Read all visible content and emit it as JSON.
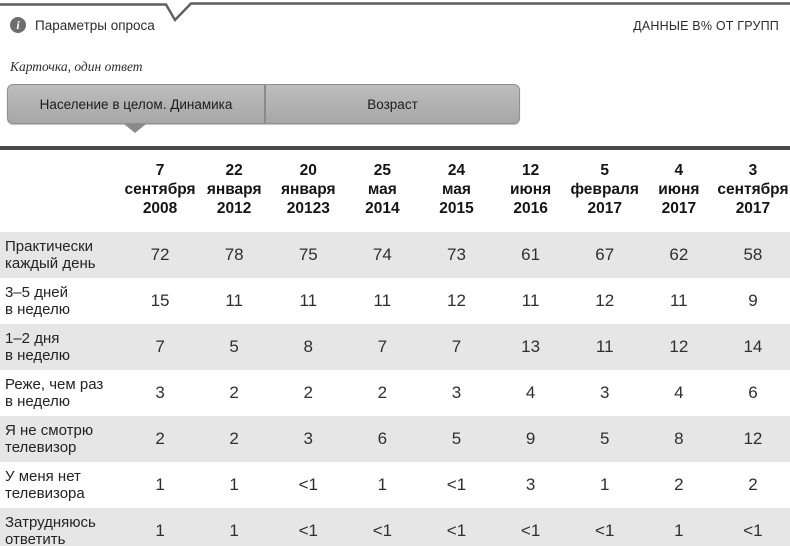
{
  "survey": {
    "params_label": "Параметры опроса",
    "data_note": "ДАННЫЕ В% ОТ ГРУПП",
    "question_note": "Карточка, один ответ"
  },
  "tabs": [
    {
      "label": "Население в целом. Динамика",
      "active": true
    },
    {
      "label": "Возраст",
      "active": false
    }
  ],
  "icons": {
    "info": "i"
  },
  "table": {
    "columns": [
      "7\nсентября\n2008",
      "22\nянваря\n2012",
      "20\nянваря\n20123",
      "25\nмая\n2014",
      "24\nмая\n2015",
      "12\nиюня\n2016",
      "5\nфевраля\n2017",
      "4\nиюня\n2017",
      "3\nсентября\n2017"
    ],
    "rows": [
      {
        "label": "Практически\nкаждый день",
        "values": [
          "72",
          "78",
          "75",
          "74",
          "73",
          "61",
          "67",
          "62",
          "58"
        ]
      },
      {
        "label": "3–5 дней\nв неделю",
        "values": [
          "15",
          "11",
          "11",
          "11",
          "12",
          "11",
          "12",
          "11",
          "9"
        ]
      },
      {
        "label": "1–2 дня\nв неделю",
        "values": [
          "7",
          "5",
          "8",
          "7",
          "7",
          "13",
          "11",
          "12",
          "14"
        ]
      },
      {
        "label": "Реже, чем раз\nв неделю",
        "values": [
          "3",
          "2",
          "2",
          "2",
          "3",
          "4",
          "3",
          "4",
          "6"
        ]
      },
      {
        "label": "Я не смотрю\nтелевизор",
        "values": [
          "2",
          "2",
          "3",
          "6",
          "5",
          "9",
          "5",
          "8",
          "12"
        ]
      },
      {
        "label": "У меня нет\nтелевизора",
        "values": [
          "1",
          "1",
          "<1",
          "1",
          "<1",
          "3",
          "1",
          "2",
          "2"
        ]
      },
      {
        "label": "Затрудняюсь\nответить",
        "values": [
          "1",
          "1",
          "<1",
          "<1",
          "<1",
          "<1",
          "<1",
          "1",
          "<1"
        ]
      }
    ]
  },
  "colors": {
    "text": "#262626",
    "tab_bar_top": "#bdbdbd",
    "tab_bar_bottom": "#a7a7a7",
    "tab_border": "#8f8f8f",
    "row_shade": "#e6e6e6",
    "table_border": "#4a4a4a",
    "callout_line": "#5f5f5f",
    "pointer": "#8a8a8a"
  }
}
